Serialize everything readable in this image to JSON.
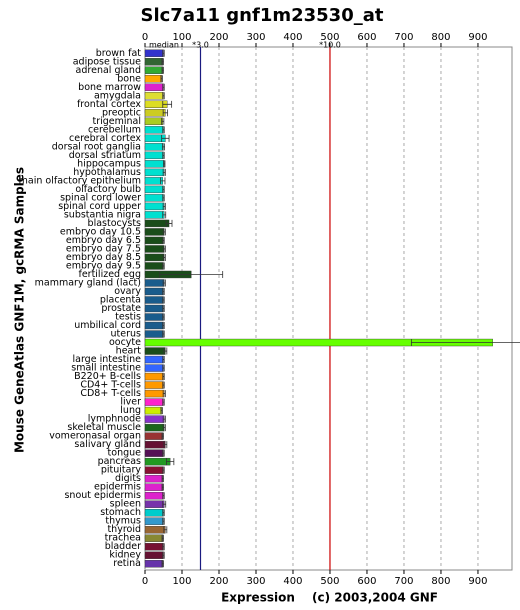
{
  "chart_data": {
    "type": "bar",
    "orientation": "horizontal",
    "title": "Slc7a11 gnf1m23530_at",
    "y_label": "Mouse GeneAtlas GNF1M, gcRMA Samples",
    "x_label": "Expression",
    "credit": "(c) 2003,2004 GNF",
    "median_label": "median",
    "reference_lines": [
      {
        "value": 150,
        "label": "*3.0",
        "color": "#1a1a80"
      },
      {
        "value": 500,
        "label": "*10.0",
        "color": "#cc0000"
      }
    ],
    "xlim": [
      0,
      992
    ],
    "xticks": [
      0,
      100,
      200,
      300,
      400,
      500,
      600,
      700,
      800,
      900
    ],
    "grid": true,
    "categories": [
      "brown fat",
      "adipose tissue",
      "adrenal gland",
      "bone",
      "bone marrow",
      "amygdala",
      "frontal cortex",
      "preoptic",
      "trigeminal",
      "cerebellum",
      "cerebral cortex",
      "dorsal root ganglia",
      "dorsal striatum",
      "hippocampus",
      "hypothalamus",
      "main olfactory epithelium",
      "olfactory bulb",
      "spinal cord lower",
      "spinal cord upper",
      "substantia nigra",
      "blastocysts",
      "embryo day 10.5",
      "embryo day 6.5",
      "embryo day 7.5",
      "embryo day 8.5",
      "embryo day 9.5",
      "fertilized egg",
      "mammary gland (lact)",
      "ovary",
      "placenta",
      "prostate",
      "testis",
      "umbilical cord",
      "uterus",
      "oocyte",
      "heart",
      "large intestine",
      "small intestine",
      "B220+ B-cells",
      "CD4+ T-cells",
      "CD8+ T-cells",
      "liver",
      "lung",
      "lymphnode",
      "skeletal muscle",
      "vomeronasal organ",
      "salivary gland",
      "tongue",
      "pancreas",
      "pituitary",
      "digits",
      "epidermis",
      "snout epidermis",
      "spleen",
      "stomach",
      "thymus",
      "thyroid",
      "trachea",
      "bladder",
      "kidney",
      "retina"
    ],
    "values": [
      50,
      48,
      48,
      45,
      50,
      50,
      60,
      55,
      48,
      50,
      55,
      50,
      50,
      52,
      52,
      48,
      50,
      50,
      52,
      52,
      65,
      52,
      50,
      52,
      52,
      50,
      125,
      52,
      50,
      50,
      50,
      50,
      50,
      50,
      940,
      55,
      50,
      50,
      50,
      50,
      52,
      50,
      45,
      52,
      52,
      48,
      55,
      50,
      68,
      50,
      48,
      48,
      50,
      52,
      50,
      50,
      55,
      48,
      50,
      50,
      48
    ],
    "errors": [
      2,
      2,
      2,
      2,
      2,
      2,
      12,
      6,
      3,
      2,
      10,
      3,
      2,
      2,
      3,
      6,
      2,
      2,
      3,
      4,
      8,
      3,
      2,
      3,
      3,
      2,
      85,
      3,
      2,
      2,
      2,
      2,
      2,
      2,
      220,
      4,
      2,
      2,
      2,
      2,
      3,
      2,
      2,
      3,
      3,
      2,
      4,
      2,
      10,
      2,
      2,
      2,
      2,
      4,
      2,
      2,
      4,
      2,
      2,
      2,
      2
    ],
    "colors": [
      "#3333cc",
      "#336633",
      "#33aa33",
      "#ffaa00",
      "#dd22cc",
      "#dddd33",
      "#dddd22",
      "#cccc22",
      "#aacc22",
      "#00e0d0",
      "#00e0d0",
      "#00e0d0",
      "#00e0d0",
      "#00e0d0",
      "#00e0d0",
      "#00e0d0",
      "#00e0d0",
      "#00e0d0",
      "#00e0d0",
      "#00e0d0",
      "#1a4d1a",
      "#1a4d1a",
      "#1a4d1a",
      "#1a4d1a",
      "#1a4d1a",
      "#1a4d1a",
      "#1a4d1a",
      "#1a5c8c",
      "#1a5c8c",
      "#1a5c8c",
      "#1a5c8c",
      "#1a5c8c",
      "#1a5c8c",
      "#1a5c8c",
      "#66ff00",
      "#1a4d1a",
      "#3366ff",
      "#3366ff",
      "#ff9900",
      "#ff9900",
      "#ff9900",
      "#ff22cc",
      "#ccee00",
      "#8833cc",
      "#1a661a",
      "#993333",
      "#661133",
      "#551155",
      "#229922",
      "#881133",
      "#dd22cc",
      "#dd22cc",
      "#dd22cc",
      "#7733aa",
      "#00cccc",
      "#3399cc",
      "#996633",
      "#888833",
      "#771133",
      "#661133",
      "#6633aa"
    ]
  }
}
